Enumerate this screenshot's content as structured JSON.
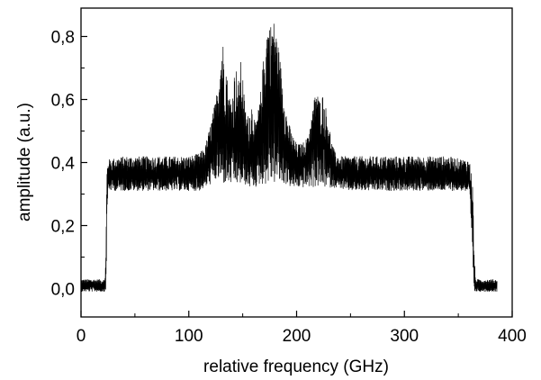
{
  "chart_data": {
    "type": "line",
    "title": "",
    "xlabel": "relative frequency (GHz)",
    "ylabel": "amplitude (a.u.)",
    "xlim": [
      0,
      400
    ],
    "ylim": [
      -0.09,
      0.89
    ],
    "x_ticks": [
      0,
      100,
      200,
      300,
      400
    ],
    "x_tick_labels": [
      "0",
      "100",
      "200",
      "300",
      "400"
    ],
    "y_ticks": [
      0.0,
      0.2,
      0.4,
      0.6,
      0.8
    ],
    "y_tick_labels": [
      "0,0",
      "0,2",
      "0,4",
      "0,6",
      "0,8"
    ],
    "grid": false,
    "legend": "none",
    "line_color": "#000000",
    "series": [
      {
        "x": [
          0,
          6,
          12,
          18,
          22,
          23,
          24,
          25,
          40,
          60,
          80,
          100,
          110,
          115,
          120,
          125,
          128,
          131,
          134,
          137,
          140,
          143,
          146,
          149,
          152,
          155,
          158,
          162,
          166,
          170,
          173,
          176,
          179,
          182,
          185,
          188,
          191,
          195,
          200,
          205,
          210,
          214,
          218,
          221,
          224,
          227,
          230,
          233,
          236,
          240,
          245,
          250,
          260,
          280,
          300,
          320,
          340,
          355,
          360,
          362,
          363,
          364,
          365,
          366,
          367,
          368,
          370,
          376,
          382,
          386
        ],
        "env_max": [
          0.03,
          0.03,
          0.03,
          0.03,
          0.03,
          0.1,
          0.38,
          0.41,
          0.42,
          0.42,
          0.42,
          0.42,
          0.43,
          0.45,
          0.52,
          0.6,
          0.7,
          0.8,
          0.74,
          0.62,
          0.6,
          0.72,
          0.66,
          0.74,
          0.58,
          0.55,
          0.6,
          0.52,
          0.6,
          0.76,
          0.85,
          0.84,
          0.85,
          0.8,
          0.72,
          0.64,
          0.55,
          0.5,
          0.46,
          0.46,
          0.48,
          0.55,
          0.64,
          0.6,
          0.62,
          0.58,
          0.52,
          0.46,
          0.43,
          0.42,
          0.42,
          0.42,
          0.42,
          0.42,
          0.42,
          0.42,
          0.42,
          0.41,
          0.41,
          0.38,
          0.36,
          0.25,
          0.1,
          0.03,
          0.03,
          0.03,
          0.03,
          0.03,
          0.03,
          0.03
        ],
        "env_min": [
          -0.01,
          -0.01,
          -0.01,
          -0.01,
          -0.01,
          -0.01,
          0.15,
          0.31,
          0.31,
          0.31,
          0.31,
          0.31,
          0.31,
          0.32,
          0.33,
          0.34,
          0.34,
          0.33,
          0.33,
          0.33,
          0.33,
          0.33,
          0.33,
          0.33,
          0.33,
          0.32,
          0.32,
          0.32,
          0.33,
          0.33,
          0.33,
          0.33,
          0.33,
          0.33,
          0.33,
          0.33,
          0.33,
          0.32,
          0.32,
          0.32,
          0.32,
          0.32,
          0.32,
          0.32,
          0.32,
          0.32,
          0.32,
          0.32,
          0.32,
          0.32,
          0.31,
          0.31,
          0.31,
          0.31,
          0.31,
          0.31,
          0.31,
          0.31,
          0.3,
          0.2,
          0.1,
          0.02,
          -0.01,
          -0.01,
          -0.01,
          -0.01,
          -0.01,
          -0.01,
          -0.01,
          -0.01
        ],
        "mean": [
          0.01,
          0.01,
          0.01,
          0.01,
          0.01,
          0.03,
          0.3,
          0.36,
          0.36,
          0.36,
          0.36,
          0.36,
          0.37,
          0.38,
          0.42,
          0.48,
          0.5,
          0.52,
          0.5,
          0.48,
          0.45,
          0.47,
          0.46,
          0.45,
          0.43,
          0.42,
          0.43,
          0.44,
          0.47,
          0.52,
          0.58,
          0.62,
          0.63,
          0.58,
          0.52,
          0.47,
          0.43,
          0.4,
          0.39,
          0.4,
          0.42,
          0.45,
          0.5,
          0.47,
          0.46,
          0.45,
          0.42,
          0.39,
          0.37,
          0.36,
          0.36,
          0.36,
          0.36,
          0.36,
          0.36,
          0.36,
          0.36,
          0.36,
          0.35,
          0.28,
          0.2,
          0.1,
          0.02,
          0.01,
          0.01,
          0.01,
          0.01,
          0.01,
          0.01,
          0.01
        ]
      }
    ]
  }
}
